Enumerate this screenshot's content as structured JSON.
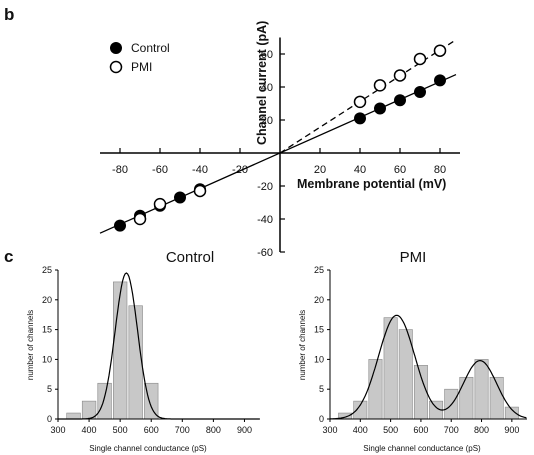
{
  "panels": {
    "b": "b",
    "c": "c"
  },
  "chart_data": [
    {
      "type": "scatter",
      "panel": "b",
      "xlabel": "Membrane potential (mV)",
      "ylabel": "Channel current (pA)",
      "xlim": [
        -90,
        90
      ],
      "ylim": [
        -60,
        70
      ],
      "xticks": [
        -80,
        -60,
        -40,
        -20,
        20,
        40,
        60,
        80
      ],
      "yticks": [
        -60,
        -40,
        -20,
        20,
        40,
        60
      ],
      "legend": {
        "position": "top-left"
      },
      "series": [
        {
          "name": "Control",
          "marker": "filled-circle",
          "color": "#000000",
          "line_style": "solid",
          "x": [
            -80,
            -70,
            -60,
            -50,
            -40,
            40,
            50,
            60,
            70,
            80
          ],
          "y": [
            -44,
            -38,
            -32,
            -27,
            -22,
            21,
            27,
            32,
            37,
            44
          ],
          "fit_slope": 0.54,
          "fit_x_range": [
            -90,
            88
          ]
        },
        {
          "name": "PMI",
          "marker": "open-circle",
          "color": "#000000",
          "line_style": "dashed",
          "x": [
            -70,
            -60,
            -40,
            40,
            50,
            60,
            70,
            80
          ],
          "y": [
            -40,
            -31,
            -23,
            31,
            41,
            47,
            57,
            62
          ],
          "fit_slope": 0.78,
          "fit_x_range": [
            0,
            88
          ]
        }
      ]
    },
    {
      "type": "bar",
      "panel": "c",
      "title": "Control",
      "xlabel": "Single channel conductance (pS)",
      "ylabel": "number of channels",
      "xlim": [
        300,
        950
      ],
      "ylim": [
        0,
        25
      ],
      "xticks": [
        300,
        400,
        500,
        600,
        700,
        800,
        900
      ],
      "yticks": [
        0,
        5,
        10,
        15,
        20,
        25
      ],
      "bar_color": "#c8c8c8",
      "bin_width": 50,
      "bin_centers": [
        350,
        400,
        450,
        500,
        550,
        600,
        650
      ],
      "values": [
        1,
        3,
        6,
        23,
        19,
        6,
        0
      ],
      "fit": {
        "kind": "gaussian",
        "peaks": [
          {
            "center": 520,
            "sd": 36,
            "amplitude": 24.5
          }
        ]
      }
    },
    {
      "type": "bar",
      "panel": "c",
      "title": "PMI",
      "xlabel": "Single channel conductance (pS)",
      "ylabel": "number of channels",
      "xlim": [
        300,
        950
      ],
      "ylim": [
        0,
        25
      ],
      "xticks": [
        300,
        400,
        500,
        600,
        700,
        800,
        900
      ],
      "yticks": [
        0,
        5,
        10,
        15,
        20,
        25
      ],
      "bar_color": "#c8c8c8",
      "bin_width": 50,
      "bin_centers": [
        350,
        400,
        450,
        500,
        550,
        600,
        650,
        700,
        750,
        800,
        850,
        900
      ],
      "values": [
        1,
        3,
        10,
        17,
        15,
        9,
        3,
        5,
        7,
        10,
        7,
        2
      ],
      "fit": {
        "kind": "gaussian",
        "peaks": [
          {
            "center": 520,
            "sd": 60,
            "amplitude": 17.4
          },
          {
            "center": 795,
            "sd": 55,
            "amplitude": 9.8
          }
        ]
      }
    }
  ]
}
